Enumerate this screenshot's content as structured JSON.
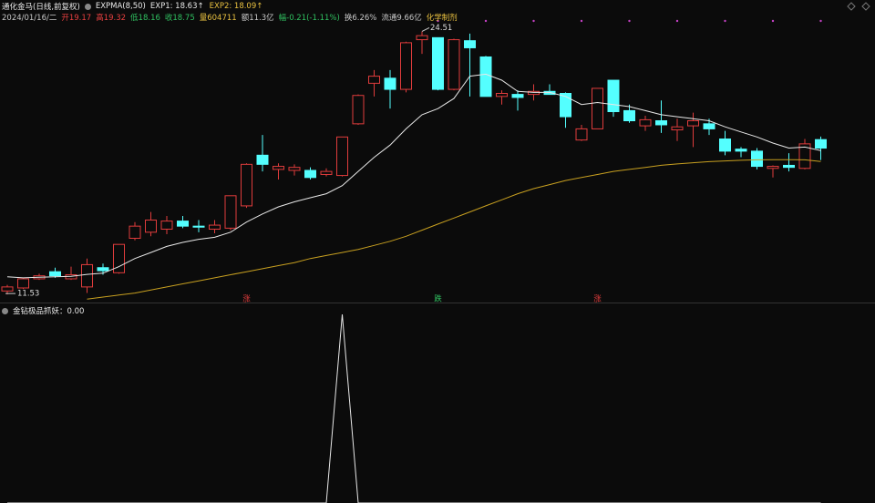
{
  "chart_data": {
    "type": "candlestick",
    "title": "通化金马(日线,前复权)",
    "indicator": "EXPMA(8,50)",
    "legend": [
      {
        "text": "EXP1: 18.63↑",
        "color": "#e8e8e8"
      },
      {
        "text": "EXP2: 18.09↑",
        "color": "#e8c040"
      }
    ],
    "quote": [
      {
        "text": "2024/01/16/二",
        "color": "#c8c8c8"
      },
      {
        "text": "开19.17",
        "color": "#e84040"
      },
      {
        "text": "高19.32",
        "color": "#e84040"
      },
      {
        "text": "低18.16",
        "color": "#30c060"
      },
      {
        "text": "收18.75",
        "color": "#30c060"
      },
      {
        "text": "量604711",
        "color": "#e8c040"
      },
      {
        "text": "额11.3亿",
        "color": "#c8c8c8"
      },
      {
        "text": "幅-0.21(-1.11%)",
        "color": "#30c060"
      },
      {
        "text": "换6.26%",
        "color": "#c8c8c8"
      },
      {
        "text": "流通9.66亿",
        "color": "#c8c8c8"
      },
      {
        "text": "化学制剂",
        "color": "#e8c040"
      }
    ],
    "categories": [
      null,
      null,
      null,
      null,
      null,
      null,
      null,
      null,
      null,
      null,
      null,
      null,
      null,
      null,
      null,
      null,
      null,
      null,
      null,
      null,
      null,
      null,
      null,
      null,
      null,
      null,
      null,
      null,
      null,
      null,
      null,
      null,
      null,
      null,
      null,
      null,
      null,
      null,
      null,
      null,
      null,
      null,
      null,
      null,
      null,
      null,
      null,
      null,
      null,
      null,
      null,
      null
    ],
    "open": [
      11.7,
      11.85,
      12.3,
      12.65,
      12.3,
      11.9,
      12.85,
      12.6,
      14.3,
      14.6,
      14.75,
      15.15,
      14.9,
      14.75,
      14.8,
      15.9,
      18.4,
      17.7,
      17.65,
      17.65,
      17.45,
      17.4,
      19.95,
      21.95,
      22.2,
      21.65,
      24.1,
      24.2,
      21.65,
      24.05,
      23.25,
      21.3,
      21.4,
      21.4,
      21.55,
      21.45,
      19.15,
      19.7,
      22.1,
      20.6,
      19.85,
      20.1,
      19.65,
      19.85,
      19.95,
      19.2,
      18.7,
      18.6,
      17.75,
      17.9,
      17.75,
      19.17
    ],
    "high": [
      12.0,
      12.35,
      12.55,
      12.85,
      12.9,
      13.3,
      13.05,
      14.0,
      15.1,
      15.6,
      15.4,
      15.4,
      15.2,
      15.2,
      16.4,
      18.0,
      19.4,
      18.0,
      17.95,
      17.8,
      17.75,
      19.3,
      21.4,
      22.6,
      22.6,
      24.0,
      24.51,
      24.2,
      24.15,
      24.4,
      23.3,
      21.6,
      21.6,
      21.9,
      21.9,
      21.5,
      19.9,
      21.7,
      22.1,
      20.9,
      20.35,
      21.1,
      20.2,
      20.5,
      20.2,
      19.6,
      18.8,
      18.75,
      17.9,
      18.5,
      19.2,
      19.32
    ],
    "low": [
      11.53,
      11.8,
      12.25,
      12.35,
      12.25,
      11.6,
      12.5,
      12.55,
      14.2,
      14.4,
      14.5,
      14.8,
      14.6,
      14.55,
      14.7,
      15.8,
      17.6,
      17.2,
      17.4,
      17.2,
      17.35,
      17.35,
      19.9,
      21.3,
      20.7,
      21.5,
      23.4,
      21.6,
      21.6,
      21.3,
      21.3,
      20.9,
      20.6,
      21.1,
      21.4,
      19.75,
      19.1,
      19.7,
      20.3,
      20.0,
      19.6,
      19.5,
      19.1,
      18.8,
      19.4,
      18.4,
      18.3,
      17.7,
      17.3,
      17.6,
      17.7,
      18.16
    ],
    "close": [
      11.9,
      12.3,
      12.45,
      12.45,
      12.5,
      13.0,
      12.7,
      14.0,
      14.9,
      15.2,
      15.15,
      14.9,
      14.85,
      14.95,
      16.4,
      17.95,
      17.95,
      17.85,
      17.8,
      17.3,
      17.6,
      19.3,
      21.35,
      22.3,
      21.65,
      23.95,
      24.3,
      21.65,
      24.1,
      23.7,
      21.3,
      21.45,
      21.25,
      21.55,
      21.4,
      20.3,
      19.7,
      21.7,
      20.55,
      20.1,
      20.15,
      19.9,
      19.8,
      20.1,
      19.7,
      18.6,
      18.6,
      17.85,
      17.85,
      17.8,
      18.96,
      18.75
    ],
    "up_color": "#e03c3c",
    "down_color": "#54ffff",
    "series": [
      {
        "name": "EXP1",
        "color": "#e8e8e8",
        "values": [
          12.4,
          12.35,
          12.38,
          12.4,
          12.42,
          12.52,
          12.58,
          12.9,
          13.3,
          13.6,
          13.9,
          14.1,
          14.25,
          14.35,
          14.6,
          15.1,
          15.5,
          15.85,
          16.1,
          16.3,
          16.5,
          16.9,
          17.6,
          18.3,
          18.9,
          19.7,
          20.4,
          20.7,
          21.2,
          22.3,
          22.4,
          22.1,
          21.55,
          21.5,
          21.5,
          21.3,
          20.9,
          21.0,
          20.9,
          20.8,
          20.6,
          20.4,
          20.3,
          20.2,
          20.1,
          19.8,
          19.55,
          19.3,
          19.0,
          18.75,
          18.8,
          18.63
        ]
      },
      {
        "name": "EXP2",
        "color": "#c8a020",
        "values": [
          null,
          null,
          null,
          null,
          null,
          11.3,
          11.4,
          11.5,
          11.6,
          11.75,
          11.9,
          12.05,
          12.2,
          12.35,
          12.5,
          12.65,
          12.8,
          12.95,
          13.1,
          13.3,
          13.45,
          13.6,
          13.75,
          13.95,
          14.15,
          14.4,
          14.7,
          15.0,
          15.3,
          15.6,
          15.9,
          16.2,
          16.5,
          16.75,
          16.95,
          17.15,
          17.3,
          17.45,
          17.6,
          17.7,
          17.8,
          17.9,
          17.97,
          18.03,
          18.08,
          18.12,
          18.15,
          18.17,
          18.18,
          18.18,
          18.17,
          18.09
        ]
      }
    ],
    "ylim": [
      11.4,
      24.8
    ],
    "signals": [
      null,
      null,
      null,
      null,
      null,
      null,
      null,
      null,
      null,
      null,
      null,
      null,
      null,
      null,
      null,
      {
        "label": "涨",
        "color": "#e03c3c"
      },
      null,
      null,
      null,
      null,
      null,
      null,
      null,
      null,
      null,
      null,
      null,
      {
        "label": "跌",
        "color": "#30c060"
      },
      null,
      null,
      null,
      null,
      null,
      null,
      null,
      null,
      null,
      {
        "label": "涨",
        "color": "#e03c3c"
      },
      null,
      null,
      null,
      null,
      null,
      null,
      null,
      null,
      null,
      null,
      null,
      null,
      null,
      null
    ],
    "sub": {
      "title": "金钻极品抓妖：0.00",
      "color": "#e8e8e8",
      "values": [
        0,
        0,
        0,
        0,
        0,
        0,
        0,
        0,
        0,
        0,
        0,
        0,
        0,
        0,
        0,
        0,
        0,
        0,
        0,
        0,
        0,
        1,
        0,
        0,
        0,
        0,
        0,
        0,
        0,
        0,
        0,
        0,
        0,
        0,
        0,
        0,
        0,
        0,
        0,
        0,
        0,
        0,
        0,
        0,
        0,
        0,
        0,
        0,
        0,
        0,
        0,
        0
      ],
      "ylim": [
        0,
        1
      ]
    }
  }
}
